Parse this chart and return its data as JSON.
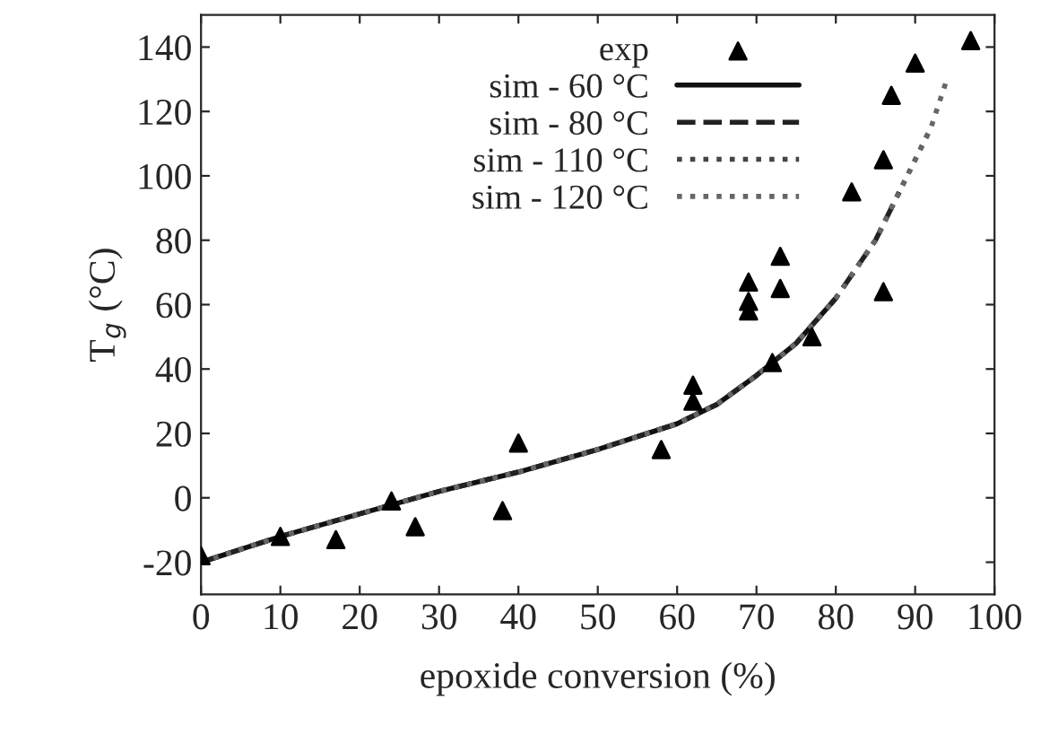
{
  "chart_data": {
    "type": "scatter",
    "xlabel": "epoxide conversion (%)",
    "ylabel": "T$_{g}$ (°C)",
    "xlim": [
      0,
      100
    ],
    "ylim": [
      -30,
      150
    ],
    "xticks": [
      0,
      10,
      20,
      30,
      40,
      50,
      60,
      70,
      80,
      90,
      100
    ],
    "yticks": [
      -20,
      0,
      20,
      40,
      60,
      80,
      100,
      120,
      140
    ],
    "grid": false,
    "legend": "top right",
    "series": [
      {
        "name": "exp",
        "marker": "triangle",
        "color": "#000000",
        "x": [
          0,
          10,
          17,
          24,
          27,
          38,
          40,
          58,
          62,
          62,
          69,
          69,
          69,
          72,
          73,
          73,
          77,
          82,
          86,
          86,
          87,
          90,
          97
        ],
        "values": [
          -18,
          -12,
          -13,
          -1,
          -9,
          -4,
          17,
          15,
          35,
          30,
          67,
          61,
          58,
          42,
          75,
          65,
          50,
          95,
          105,
          64,
          125,
          135,
          142
        ]
      },
      {
        "name": "sim - 60 °C",
        "type": "line",
        "line_style": "solid",
        "color": "#111111",
        "x": [
          0,
          10,
          20,
          30,
          40,
          50,
          60,
          65,
          70,
          75,
          80
        ],
        "values": [
          -20,
          -12,
          -5,
          2,
          8,
          15,
          23,
          29,
          38,
          48,
          62
        ]
      },
      {
        "name": "sim - 80 °C",
        "type": "line",
        "line_style": "dashed",
        "color": "#222222",
        "x": [
          0,
          10,
          20,
          30,
          40,
          50,
          60,
          65,
          70,
          75,
          80,
          85,
          88
        ],
        "values": [
          -20,
          -12,
          -5,
          2,
          8,
          15,
          23,
          29,
          38,
          48,
          62,
          80,
          95
        ]
      },
      {
        "name": "sim - 110 °C",
        "type": "line",
        "line_style": "dotted",
        "color": "#444444",
        "x": [
          0,
          10,
          20,
          30,
          40,
          50,
          60,
          65,
          70,
          75,
          80,
          85,
          88,
          92
        ],
        "values": [
          -20,
          -12,
          -5,
          2,
          8,
          15,
          23,
          29,
          38,
          48,
          62,
          80,
          95,
          115
        ]
      },
      {
        "name": "sim - 120 °C",
        "type": "line",
        "line_style": "dotted",
        "color": "#666666",
        "x": [
          0,
          10,
          20,
          30,
          40,
          50,
          60,
          65,
          70,
          75,
          80,
          85,
          88,
          92,
          94
        ],
        "values": [
          -20,
          -12,
          -5,
          2,
          8,
          15,
          23,
          29,
          38,
          48,
          62,
          80,
          95,
          115,
          130
        ]
      }
    ]
  }
}
